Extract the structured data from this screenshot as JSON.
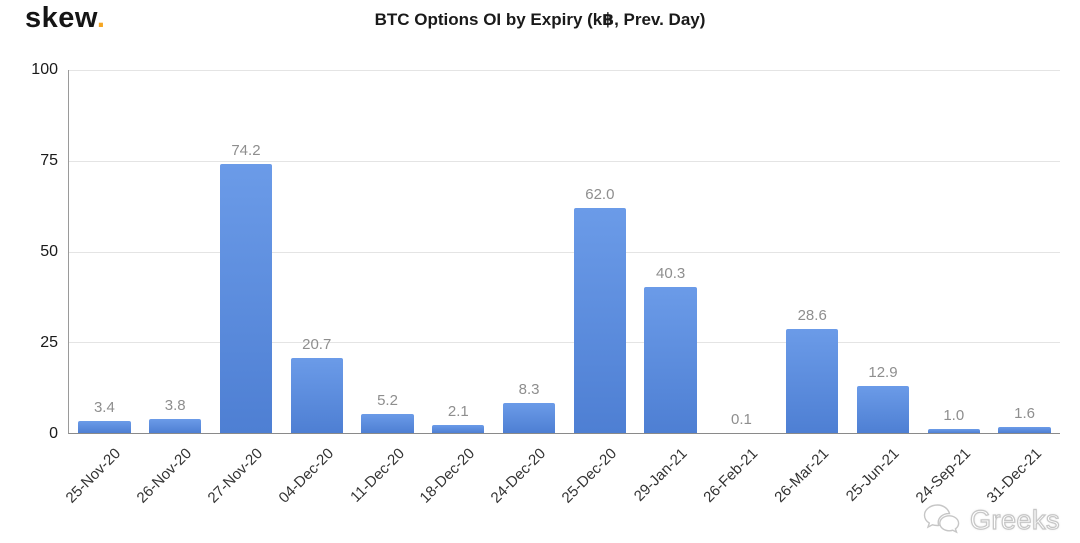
{
  "logo": {
    "text": "skew",
    "dot": "."
  },
  "watermark": {
    "text": "Greeks",
    "icon": "chat-bubbles-icon"
  },
  "colors": {
    "bar_top": "#6b9be8",
    "bar_bottom": "#4e7fd3",
    "grid": "#e4e4e4",
    "axis": "#8a8a8a",
    "value_label": "#8e8e8e",
    "logo_dot": "#f5a623",
    "watermark_gray": "#c6c6c6"
  },
  "chart_data": {
    "type": "bar",
    "title": "BTC Options OI by Expiry (k฿, Prev. Day)",
    "xlabel": "",
    "ylabel": "",
    "ylim": [
      0,
      100
    ],
    "yticks": [
      0,
      25,
      50,
      75,
      100
    ],
    "grid": true,
    "legend": false,
    "bar_color": "#5b8bdc",
    "categories": [
      "25-Nov-20",
      "26-Nov-20",
      "27-Nov-20",
      "04-Dec-20",
      "11-Dec-20",
      "18-Dec-20",
      "24-Dec-20",
      "25-Dec-20",
      "29-Jan-21",
      "26-Feb-21",
      "26-Mar-21",
      "25-Jun-21",
      "24-Sep-21",
      "31-Dec-21"
    ],
    "values": [
      3.4,
      3.8,
      74.2,
      20.7,
      5.2,
      2.1,
      8.3,
      62.0,
      40.3,
      0.1,
      28.6,
      12.9,
      1.0,
      1.6
    ]
  }
}
